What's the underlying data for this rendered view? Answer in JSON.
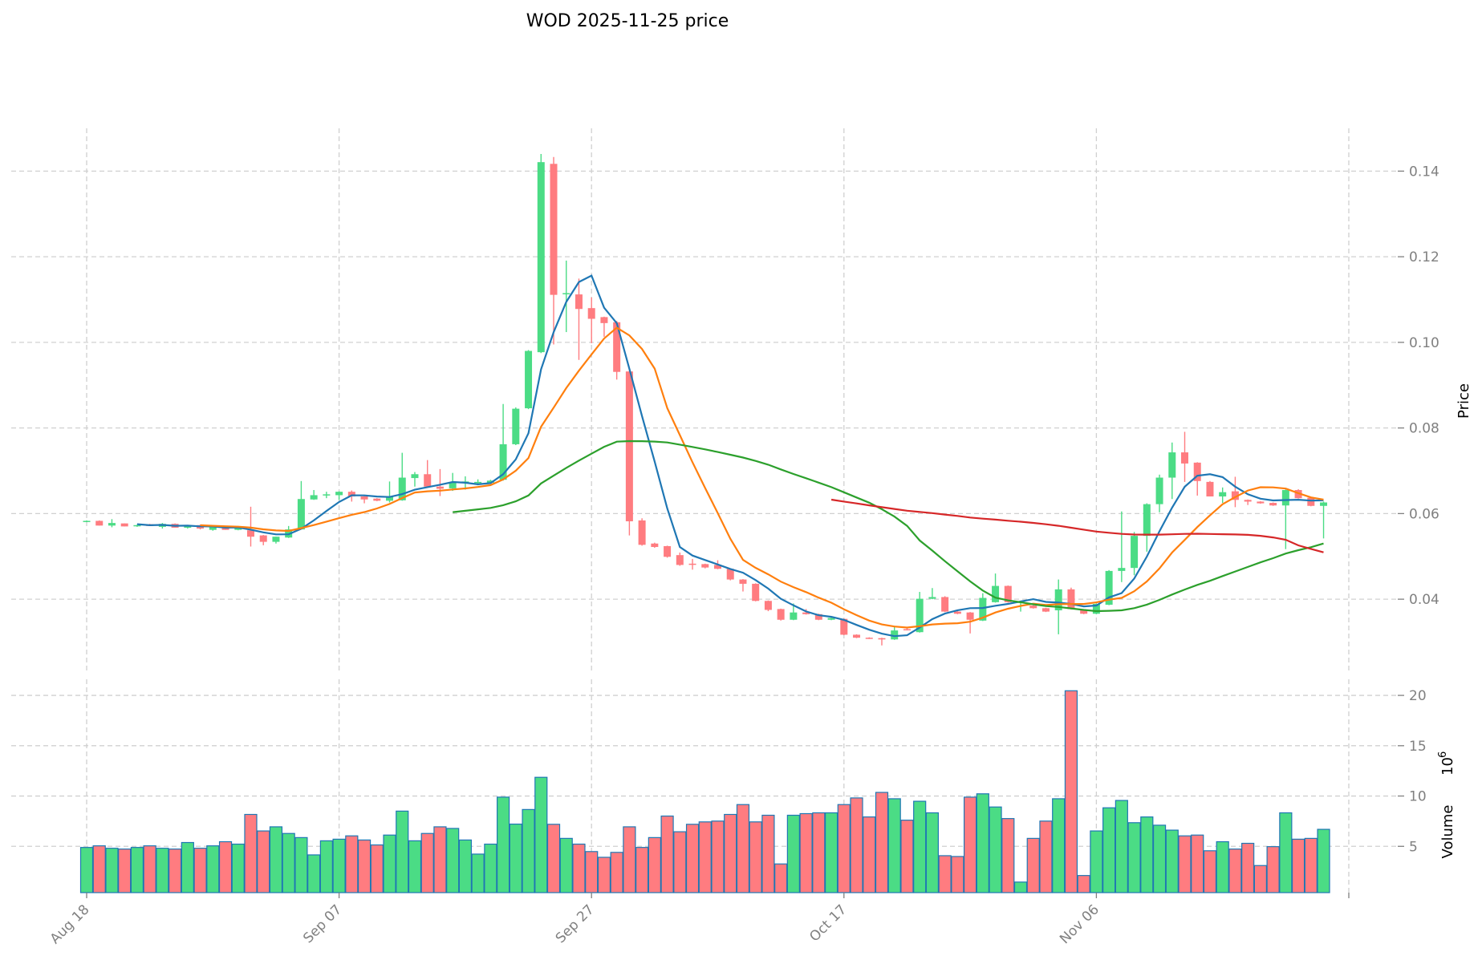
{
  "chart_data": {
    "type": "candlestick",
    "title": "WOD  2025-11-25  price",
    "start_date": "2025-08-18",
    "ylabel_price": "Price",
    "ylabel_volume": "Volume",
    "volume_exponent": "10",
    "volume_exponent_power": "6",
    "price_ylim": [
      0.0226,
      0.15
    ],
    "price_ticks": [
      "0.04",
      "0.06",
      "0.08",
      "0.10",
      "0.12",
      "0.14"
    ],
    "volume_ylim": [
      0.4,
      21.6
    ],
    "volume_ticks": [
      "5",
      "10",
      "15",
      "20"
    ],
    "x_ticks": [
      {
        "index": 0,
        "label": "Aug 18"
      },
      {
        "index": 20,
        "label": "Sep 07"
      },
      {
        "index": 40,
        "label": "Sep 27"
      },
      {
        "index": 60,
        "label": "Oct 17"
      },
      {
        "index": 80,
        "label": "Nov 06"
      },
      {
        "index": 100,
        "label": ""
      }
    ],
    "grid": true,
    "colors": {
      "up": "#4bdc85",
      "down": "#ff7c80",
      "volume_edge": "#1f77b4",
      "ma5": "#1f77b4",
      "ma10": "#ff7f0e",
      "ma30": "#2ca02c",
      "ma60": "#d62728"
    },
    "moving_averages": [
      5,
      10,
      30,
      60
    ],
    "ohlc": [
      [
        0.0581,
        0.0584,
        0.058,
        0.0583
      ],
      [
        0.0583,
        0.0584,
        0.0572,
        0.0572
      ],
      [
        0.0572,
        0.0587,
        0.0568,
        0.0578
      ],
      [
        0.0577,
        0.0577,
        0.057,
        0.057
      ],
      [
        0.0571,
        0.0574,
        0.0569,
        0.0573
      ],
      [
        0.0575,
        0.0576,
        0.0571,
        0.0571
      ],
      [
        0.0569,
        0.0578,
        0.0565,
        0.0576
      ],
      [
        0.0576,
        0.0577,
        0.0567,
        0.0567
      ],
      [
        0.0567,
        0.0573,
        0.0565,
        0.0572
      ],
      [
        0.0573,
        0.0574,
        0.0563,
        0.0565
      ],
      [
        0.0562,
        0.0572,
        0.056,
        0.057
      ],
      [
        0.0569,
        0.057,
        0.0562,
        0.0562
      ],
      [
        0.0562,
        0.0571,
        0.0561,
        0.0569
      ],
      [
        0.0561,
        0.0616,
        0.0523,
        0.0546
      ],
      [
        0.0549,
        0.055,
        0.0526,
        0.0534
      ],
      [
        0.0534,
        0.0546,
        0.053,
        0.0546
      ],
      [
        0.0544,
        0.0571,
        0.0543,
        0.0563
      ],
      [
        0.0563,
        0.0676,
        0.0563,
        0.0634
      ],
      [
        0.0633,
        0.0655,
        0.0632,
        0.0643
      ],
      [
        0.0643,
        0.0651,
        0.0636,
        0.0645
      ],
      [
        0.0643,
        0.0652,
        0.0632,
        0.0651
      ],
      [
        0.0651,
        0.0654,
        0.0628,
        0.064
      ],
      [
        0.064,
        0.0641,
        0.0624,
        0.0633
      ],
      [
        0.0635,
        0.0636,
        0.0629,
        0.063
      ],
      [
        0.063,
        0.0675,
        0.0626,
        0.064
      ],
      [
        0.0631,
        0.0742,
        0.063,
        0.0684
      ],
      [
        0.0683,
        0.0697,
        0.0663,
        0.0692
      ],
      [
        0.0692,
        0.0725,
        0.0661,
        0.0663
      ],
      [
        0.0663,
        0.0704,
        0.0641,
        0.0658
      ],
      [
        0.0659,
        0.0695,
        0.0653,
        0.0672
      ],
      [
        0.0672,
        0.0687,
        0.0656,
        0.0675
      ],
      [
        0.0672,
        0.068,
        0.0666,
        0.0674
      ],
      [
        0.0672,
        0.0679,
        0.067,
        0.0677
      ],
      [
        0.0679,
        0.0856,
        0.0677,
        0.0762
      ],
      [
        0.0762,
        0.0848,
        0.076,
        0.0845
      ],
      [
        0.0846,
        0.0982,
        0.0844,
        0.098
      ],
      [
        0.0977,
        0.144,
        0.0975,
        0.1421
      ],
      [
        0.1417,
        0.1433,
        0.0995,
        0.1111
      ],
      [
        0.1113,
        0.1191,
        0.1024,
        0.1115
      ],
      [
        0.1112,
        0.1149,
        0.0959,
        0.1078
      ],
      [
        0.108,
        0.1105,
        0.0998,
        0.1055
      ],
      [
        0.1059,
        0.106,
        0.1013,
        0.1045
      ],
      [
        0.1047,
        0.105,
        0.0913,
        0.0931
      ],
      [
        0.0932,
        0.0934,
        0.0549,
        0.0582
      ],
      [
        0.0584,
        0.0589,
        0.0525,
        0.0527
      ],
      [
        0.053,
        0.0532,
        0.052,
        0.0522
      ],
      [
        0.0524,
        0.0525,
        0.0497,
        0.0499
      ],
      [
        0.0503,
        0.0509,
        0.0478,
        0.048
      ],
      [
        0.0483,
        0.0494,
        0.0469,
        0.0482
      ],
      [
        0.0482,
        0.0483,
        0.0472,
        0.0474
      ],
      [
        0.048,
        0.0491,
        0.047,
        0.0471
      ],
      [
        0.0471,
        0.0472,
        0.0444,
        0.0446
      ],
      [
        0.0446,
        0.0447,
        0.0418,
        0.0436
      ],
      [
        0.0436,
        0.0437,
        0.0395,
        0.0396
      ],
      [
        0.0396,
        0.0397,
        0.0372,
        0.0375
      ],
      [
        0.0377,
        0.0378,
        0.035,
        0.0352
      ],
      [
        0.0352,
        0.039,
        0.0351,
        0.0369
      ],
      [
        0.0369,
        0.0377,
        0.0364,
        0.0365
      ],
      [
        0.0365,
        0.0366,
        0.0351,
        0.0352
      ],
      [
        0.0352,
        0.0358,
        0.0351,
        0.0356
      ],
      [
        0.0354,
        0.0355,
        0.0316,
        0.0317
      ],
      [
        0.0317,
        0.0318,
        0.0309,
        0.031
      ],
      [
        0.031,
        0.0311,
        0.0307,
        0.0308
      ],
      [
        0.0309,
        0.031,
        0.0292,
        0.0306
      ],
      [
        0.0306,
        0.0336,
        0.0305,
        0.0327
      ],
      [
        0.033,
        0.0333,
        0.0327,
        0.0328
      ],
      [
        0.0323,
        0.0417,
        0.0322,
        0.0401
      ],
      [
        0.0401,
        0.0426,
        0.04,
        0.0405
      ],
      [
        0.0405,
        0.0407,
        0.037,
        0.0371
      ],
      [
        0.0371,
        0.0372,
        0.0365,
        0.0366
      ],
      [
        0.0369,
        0.037,
        0.032,
        0.0352
      ],
      [
        0.035,
        0.0414,
        0.0349,
        0.0403
      ],
      [
        0.0393,
        0.046,
        0.0392,
        0.0431
      ],
      [
        0.0431,
        0.0432,
        0.0392,
        0.0393
      ],
      [
        0.0392,
        0.0396,
        0.0371,
        0.0394
      ],
      [
        0.0385,
        0.0386,
        0.0378,
        0.0379
      ],
      [
        0.0379,
        0.038,
        0.037,
        0.0371
      ],
      [
        0.0374,
        0.0446,
        0.0318,
        0.0423
      ],
      [
        0.0423,
        0.0427,
        0.0376,
        0.0377
      ],
      [
        0.0374,
        0.0375,
        0.0365,
        0.0366
      ],
      [
        0.0366,
        0.039,
        0.0365,
        0.0389
      ],
      [
        0.0387,
        0.0468,
        0.0386,
        0.0466
      ],
      [
        0.0466,
        0.0605,
        0.044,
        0.0473
      ],
      [
        0.0473,
        0.0557,
        0.0456,
        0.0548
      ],
      [
        0.0548,
        0.0624,
        0.0511,
        0.0622
      ],
      [
        0.0622,
        0.0691,
        0.0603,
        0.0684
      ],
      [
        0.0684,
        0.0766,
        0.0634,
        0.0743
      ],
      [
        0.0743,
        0.0791,
        0.0674,
        0.0717
      ],
      [
        0.0719,
        0.072,
        0.0642,
        0.0676
      ],
      [
        0.0674,
        0.0676,
        0.064,
        0.064
      ],
      [
        0.064,
        0.0661,
        0.0625,
        0.065
      ],
      [
        0.0652,
        0.0686,
        0.0615,
        0.0632
      ],
      [
        0.0632,
        0.0633,
        0.062,
        0.0628
      ],
      [
        0.0628,
        0.0629,
        0.0623,
        0.0624
      ],
      [
        0.0625,
        0.0626,
        0.0618,
        0.0619
      ],
      [
        0.0619,
        0.0656,
        0.0517,
        0.0655
      ],
      [
        0.0655,
        0.0657,
        0.0635,
        0.0636
      ],
      [
        0.0637,
        0.0638,
        0.0617,
        0.0618
      ],
      [
        0.0618,
        0.0628,
        0.0542,
        0.0626
      ]
    ],
    "volume_millions": [
      4.89,
      5.05,
      4.81,
      4.73,
      4.89,
      5.05,
      4.81,
      4.73,
      5.38,
      4.81,
      5.05,
      5.46,
      5.22,
      8.17,
      6.53,
      6.94,
      6.28,
      5.87,
      4.15,
      5.55,
      5.71,
      6.04,
      5.63,
      5.14,
      6.12,
      8.5,
      5.55,
      6.28,
      6.94,
      6.78,
      5.63,
      4.23,
      5.22,
      9.89,
      7.21,
      8.66,
      11.86,
      7.19,
      5.79,
      5.22,
      4.48,
      3.91,
      4.4,
      6.94,
      4.89,
      5.87,
      8.01,
      6.45,
      7.19,
      7.43,
      7.51,
      8.17,
      9.15,
      7.43,
      8.09,
      3.25,
      8.09,
      8.25,
      8.33,
      8.33,
      9.15,
      9.81,
      7.92,
      10.36,
      9.73,
      7.6,
      9.48,
      8.33,
      4.07,
      3.99,
      9.89,
      10.22,
      8.91,
      7.76,
      1.45,
      5.79,
      7.51,
      9.73,
      20.46,
      2.1,
      6.53,
      8.83,
      9.56,
      7.35,
      7.92,
      7.1,
      6.61,
      6.04,
      6.12,
      4.56,
      5.46,
      4.73,
      5.3,
      3.09,
      4.97,
      8.33,
      5.71,
      5.79,
      6.69
    ]
  }
}
